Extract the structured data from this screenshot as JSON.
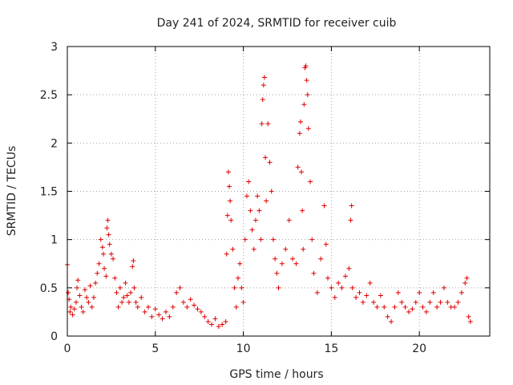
{
  "chart_data": {
    "type": "scatter",
    "title": "Day 241 of 2024, SRMTID for receiver cuib",
    "xlabel": "GPS time / hours",
    "ylabel": "SRMTID / TECUs",
    "xlim": [
      0,
      24
    ],
    "ylim": [
      0,
      3
    ],
    "xticks": [
      0,
      5,
      10,
      15,
      20
    ],
    "xtick_labels": [
      "0",
      "5",
      "10",
      "15",
      "20"
    ],
    "yticks": [
      0,
      0.5,
      1,
      1.5,
      2,
      2.5,
      3
    ],
    "ytick_labels": [
      "0",
      "0.5",
      "1",
      "1.5",
      "2",
      "2.5",
      "3"
    ],
    "grid": true,
    "marker": "+",
    "color": "#e00000",
    "series": [
      {
        "name": "SRMTID",
        "points": [
          [
            0.0,
            0.74
          ],
          [
            0.05,
            0.45
          ],
          [
            0.1,
            0.38
          ],
          [
            0.15,
            0.25
          ],
          [
            0.2,
            0.3
          ],
          [
            0.3,
            0.22
          ],
          [
            0.4,
            0.28
          ],
          [
            0.5,
            0.35
          ],
          [
            0.55,
            0.5
          ],
          [
            0.6,
            0.58
          ],
          [
            0.7,
            0.42
          ],
          [
            0.8,
            0.3
          ],
          [
            0.9,
            0.25
          ],
          [
            1.0,
            0.48
          ],
          [
            1.1,
            0.4
          ],
          [
            1.2,
            0.35
          ],
          [
            1.3,
            0.52
          ],
          [
            1.4,
            0.3
          ],
          [
            1.5,
            0.4
          ],
          [
            1.6,
            0.55
          ],
          [
            1.7,
            0.65
          ],
          [
            1.8,
            0.75
          ],
          [
            1.9,
            1.0
          ],
          [
            2.0,
            0.92
          ],
          [
            2.05,
            0.85
          ],
          [
            2.1,
            0.7
          ],
          [
            2.2,
            0.62
          ],
          [
            2.25,
            1.12
          ],
          [
            2.3,
            1.2
          ],
          [
            2.35,
            1.05
          ],
          [
            2.4,
            0.95
          ],
          [
            2.5,
            0.85
          ],
          [
            2.6,
            0.8
          ],
          [
            2.7,
            0.6
          ],
          [
            2.8,
            0.45
          ],
          [
            2.9,
            0.3
          ],
          [
            3.0,
            0.5
          ],
          [
            3.1,
            0.35
          ],
          [
            3.2,
            0.4
          ],
          [
            3.3,
            0.55
          ],
          [
            3.4,
            0.42
          ],
          [
            3.5,
            0.35
          ],
          [
            3.6,
            0.45
          ],
          [
            3.7,
            0.72
          ],
          [
            3.75,
            0.78
          ],
          [
            3.8,
            0.5
          ],
          [
            3.9,
            0.35
          ],
          [
            4.0,
            0.3
          ],
          [
            4.2,
            0.4
          ],
          [
            4.4,
            0.25
          ],
          [
            4.6,
            0.3
          ],
          [
            4.8,
            0.2
          ],
          [
            5.0,
            0.28
          ],
          [
            5.2,
            0.22
          ],
          [
            5.4,
            0.18
          ],
          [
            5.6,
            0.25
          ],
          [
            5.8,
            0.2
          ],
          [
            6.0,
            0.3
          ],
          [
            6.2,
            0.45
          ],
          [
            6.4,
            0.5
          ],
          [
            6.6,
            0.35
          ],
          [
            6.8,
            0.3
          ],
          [
            7.0,
            0.38
          ],
          [
            7.2,
            0.32
          ],
          [
            7.4,
            0.28
          ],
          [
            7.6,
            0.25
          ],
          [
            7.8,
            0.2
          ],
          [
            8.0,
            0.15
          ],
          [
            8.2,
            0.12
          ],
          [
            8.4,
            0.18
          ],
          [
            8.6,
            0.1
          ],
          [
            8.8,
            0.12
          ],
          [
            9.0,
            0.15
          ],
          [
            9.05,
            0.85
          ],
          [
            9.1,
            1.25
          ],
          [
            9.15,
            1.7
          ],
          [
            9.2,
            1.55
          ],
          [
            9.25,
            1.4
          ],
          [
            9.3,
            1.2
          ],
          [
            9.4,
            0.9
          ],
          [
            9.5,
            0.5
          ],
          [
            9.6,
            0.3
          ],
          [
            9.7,
            0.6
          ],
          [
            9.8,
            0.75
          ],
          [
            9.9,
            0.5
          ],
          [
            10.0,
            0.35
          ],
          [
            10.1,
            1.0
          ],
          [
            10.2,
            1.45
          ],
          [
            10.3,
            1.6
          ],
          [
            10.4,
            1.3
          ],
          [
            10.5,
            1.1
          ],
          [
            10.6,
            0.9
          ],
          [
            10.7,
            1.2
          ],
          [
            10.8,
            1.45
          ],
          [
            10.9,
            1.3
          ],
          [
            11.0,
            1.0
          ],
          [
            11.05,
            2.2
          ],
          [
            11.1,
            2.45
          ],
          [
            11.15,
            2.6
          ],
          [
            11.2,
            2.68
          ],
          [
            11.25,
            1.85
          ],
          [
            11.3,
            1.4
          ],
          [
            11.4,
            2.2
          ],
          [
            11.5,
            1.8
          ],
          [
            11.6,
            1.5
          ],
          [
            11.7,
            1.0
          ],
          [
            11.8,
            0.8
          ],
          [
            11.9,
            0.65
          ],
          [
            12.0,
            0.5
          ],
          [
            12.2,
            0.75
          ],
          [
            12.4,
            0.9
          ],
          [
            12.6,
            1.2
          ],
          [
            12.8,
            0.8
          ],
          [
            13.0,
            0.75
          ],
          [
            13.1,
            1.75
          ],
          [
            13.2,
            2.1
          ],
          [
            13.25,
            2.22
          ],
          [
            13.3,
            1.7
          ],
          [
            13.35,
            1.3
          ],
          [
            13.4,
            0.9
          ],
          [
            13.45,
            2.4
          ],
          [
            13.5,
            2.78
          ],
          [
            13.55,
            2.8
          ],
          [
            13.6,
            2.65
          ],
          [
            13.65,
            2.5
          ],
          [
            13.7,
            2.15
          ],
          [
            13.8,
            1.6
          ],
          [
            13.9,
            1.0
          ],
          [
            14.0,
            0.65
          ],
          [
            14.2,
            0.45
          ],
          [
            14.4,
            0.8
          ],
          [
            14.6,
            1.35
          ],
          [
            14.7,
            0.95
          ],
          [
            14.8,
            0.6
          ],
          [
            15.0,
            0.5
          ],
          [
            15.2,
            0.4
          ],
          [
            15.4,
            0.55
          ],
          [
            15.6,
            0.5
          ],
          [
            15.8,
            0.62
          ],
          [
            16.0,
            0.7
          ],
          [
            16.1,
            1.2
          ],
          [
            16.15,
            1.35
          ],
          [
            16.2,
            0.5
          ],
          [
            16.4,
            0.4
          ],
          [
            16.6,
            0.45
          ],
          [
            16.8,
            0.35
          ],
          [
            17.0,
            0.42
          ],
          [
            17.2,
            0.55
          ],
          [
            17.4,
            0.35
          ],
          [
            17.6,
            0.3
          ],
          [
            17.8,
            0.42
          ],
          [
            18.0,
            0.3
          ],
          [
            18.2,
            0.2
          ],
          [
            18.4,
            0.15
          ],
          [
            18.6,
            0.3
          ],
          [
            18.8,
            0.45
          ],
          [
            19.0,
            0.35
          ],
          [
            19.2,
            0.3
          ],
          [
            19.4,
            0.25
          ],
          [
            19.6,
            0.28
          ],
          [
            19.8,
            0.35
          ],
          [
            20.0,
            0.45
          ],
          [
            20.2,
            0.3
          ],
          [
            20.4,
            0.25
          ],
          [
            20.6,
            0.35
          ],
          [
            20.8,
            0.45
          ],
          [
            21.0,
            0.3
          ],
          [
            21.2,
            0.35
          ],
          [
            21.4,
            0.5
          ],
          [
            21.6,
            0.35
          ],
          [
            21.8,
            0.3
          ],
          [
            22.0,
            0.3
          ],
          [
            22.2,
            0.35
          ],
          [
            22.4,
            0.45
          ],
          [
            22.6,
            0.55
          ],
          [
            22.7,
            0.6
          ],
          [
            22.8,
            0.2
          ],
          [
            22.9,
            0.15
          ]
        ]
      }
    ]
  }
}
